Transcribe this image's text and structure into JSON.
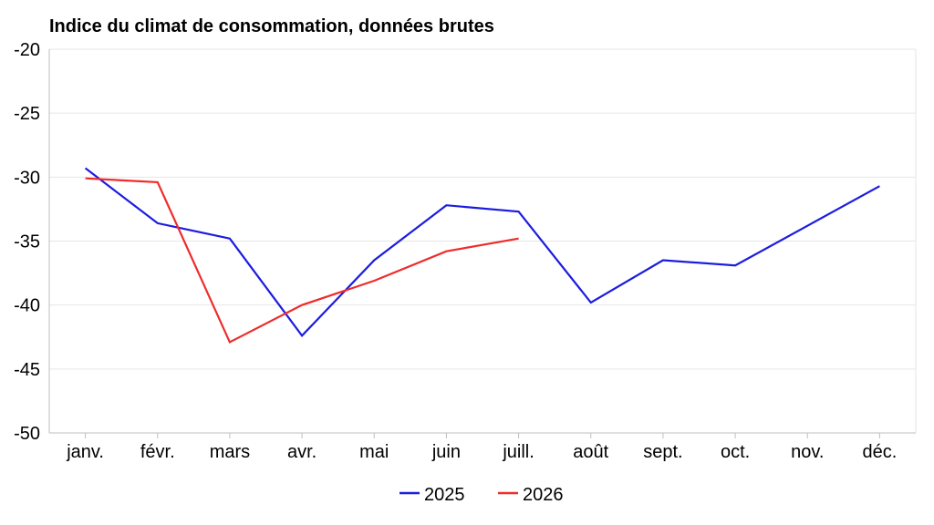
{
  "chart_data": {
    "type": "line",
    "title": "Indice du climat de consommation, données brutes",
    "xlabel": "",
    "ylabel": "",
    "categories": [
      "janv.",
      "févr.",
      "mars",
      "avr.",
      "mai",
      "juin",
      "juill.",
      "août",
      "sept.",
      "oct.",
      "nov.",
      "déc."
    ],
    "ylim": [
      -50,
      -20
    ],
    "yticks": [
      -20,
      -25,
      -30,
      -35,
      -40,
      -45,
      -50
    ],
    "grid": true,
    "legend_position": "bottom",
    "series": [
      {
        "name": "2025",
        "color": "#1c1ce0",
        "values": [
          -29.3,
          -33.6,
          -34.8,
          -42.4,
          -36.5,
          -32.2,
          -32.7,
          -39.8,
          -36.5,
          -36.9,
          -33.8,
          -30.7
        ]
      },
      {
        "name": "2026",
        "color": "#ef2b2b",
        "values": [
          -30.1,
          -30.4,
          -42.9,
          -40.0,
          -38.1,
          -35.8,
          -34.8,
          null,
          null,
          null,
          null,
          null
        ]
      }
    ]
  }
}
